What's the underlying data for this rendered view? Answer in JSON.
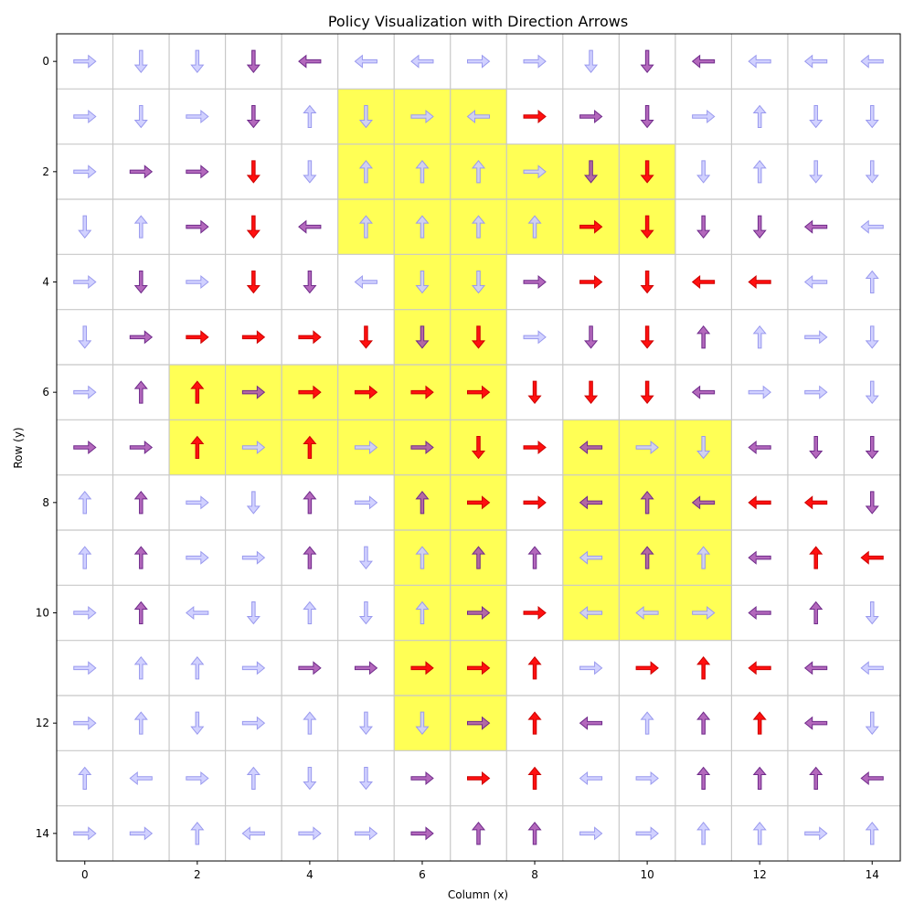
{
  "chart_data": {
    "type": "quiver",
    "title": "Policy Visualization with Direction Arrows",
    "xlabel": "Column (x)",
    "ylabel": "Row (y)",
    "xlim": [
      -0.5,
      14.5
    ],
    "ylim": [
      14.5,
      -0.5
    ],
    "y_inverted": true,
    "grid": true,
    "xticks": [
      0,
      2,
      4,
      6,
      8,
      10,
      12,
      14
    ],
    "yticks": [
      0,
      2,
      4,
      6,
      8,
      10,
      12,
      14
    ],
    "colors": {
      "highlight": "#ffff55",
      "grid": "#c8c8c8",
      "arrow_low": "#b8b8ff",
      "arrow_mid": "#a64db0",
      "arrow_high": "#ff0000"
    },
    "highlighted_cells": [
      [
        5,
        1
      ],
      [
        6,
        1
      ],
      [
        7,
        1
      ],
      [
        5,
        2
      ],
      [
        6,
        2
      ],
      [
        7,
        2
      ],
      [
        8,
        2
      ],
      [
        9,
        2
      ],
      [
        10,
        2
      ],
      [
        5,
        3
      ],
      [
        6,
        3
      ],
      [
        7,
        3
      ],
      [
        8,
        3
      ],
      [
        9,
        3
      ],
      [
        10,
        3
      ],
      [
        6,
        4
      ],
      [
        7,
        4
      ],
      [
        6,
        5
      ],
      [
        7,
        5
      ],
      [
        2,
        6
      ],
      [
        3,
        6
      ],
      [
        4,
        6
      ],
      [
        5,
        6
      ],
      [
        6,
        6
      ],
      [
        7,
        6
      ],
      [
        2,
        7
      ],
      [
        3,
        7
      ],
      [
        4,
        7
      ],
      [
        5,
        7
      ],
      [
        6,
        7
      ],
      [
        7,
        7
      ],
      [
        9,
        7
      ],
      [
        10,
        7
      ],
      [
        11,
        7
      ],
      [
        6,
        8
      ],
      [
        7,
        8
      ],
      [
        9,
        8
      ],
      [
        10,
        8
      ],
      [
        11,
        8
      ],
      [
        6,
        9
      ],
      [
        7,
        9
      ],
      [
        9,
        9
      ],
      [
        10,
        9
      ],
      [
        11,
        9
      ],
      [
        6,
        10
      ],
      [
        7,
        10
      ],
      [
        9,
        10
      ],
      [
        10,
        10
      ],
      [
        11,
        10
      ],
      [
        6,
        11
      ],
      [
        7,
        11
      ],
      [
        6,
        12
      ],
      [
        7,
        12
      ]
    ],
    "arrow_legend": {
      "R": "right",
      "L": "left",
      "U": "up",
      "D": "down",
      "0": "light / low",
      "1": "medium",
      "2": "strong / high"
    },
    "policy_rows": [
      [
        "R0",
        "D0",
        "D0",
        "D1",
        "L1",
        "L0",
        "L0",
        "R0",
        "R0",
        "D0",
        "D1",
        "L1",
        "L0",
        "L0",
        "L0"
      ],
      [
        "R0",
        "D0",
        "R0",
        "D1",
        "U0",
        "D0",
        "R0",
        "L0",
        "R2",
        "R1",
        "D1",
        "R0",
        "U0",
        "D0",
        "D0"
      ],
      [
        "R0",
        "R1",
        "R1",
        "D2",
        "D0",
        "U0",
        "U0",
        "U0",
        "R0",
        "D1",
        "D2",
        "D0",
        "U0",
        "D0",
        "D0"
      ],
      [
        "D0",
        "U0",
        "R1",
        "D2",
        "L1",
        "U0",
        "U0",
        "U0",
        "U0",
        "R2",
        "D2",
        "D1",
        "D1",
        "L1",
        "L0"
      ],
      [
        "R0",
        "D1",
        "R0",
        "D2",
        "D1",
        "L0",
        "D0",
        "D0",
        "R1",
        "R2",
        "D2",
        "L2",
        "L2",
        "L0",
        "U0"
      ],
      [
        "D0",
        "R1",
        "R2",
        "R2",
        "R2",
        "D2",
        "D1",
        "D2",
        "R0",
        "D1",
        "D2",
        "U1",
        "U0",
        "R0",
        "D0"
      ],
      [
        "R0",
        "U1",
        "U2",
        "R1",
        "R2",
        "R2",
        "R2",
        "R2",
        "D2",
        "D2",
        "D2",
        "L1",
        "R0",
        "R0",
        "D0"
      ],
      [
        "R1",
        "R1",
        "U2",
        "R0",
        "U2",
        "R0",
        "R1",
        "D2",
        "R2",
        "L1",
        "R0",
        "D0",
        "L1",
        "D1",
        "D1"
      ],
      [
        "U0",
        "U1",
        "R0",
        "D0",
        "U1",
        "R0",
        "U1",
        "R2",
        "R2",
        "L1",
        "U1",
        "L1",
        "L2",
        "L2",
        "D1"
      ],
      [
        "U0",
        "U1",
        "R0",
        "R0",
        "U1",
        "D0",
        "U0",
        "U1",
        "U1",
        "L0",
        "U1",
        "U0",
        "L1",
        "U2",
        "L2"
      ],
      [
        "R0",
        "U1",
        "L0",
        "D0",
        "U0",
        "D0",
        "U0",
        "R1",
        "R2",
        "L0",
        "L0",
        "R0",
        "L1",
        "U1",
        "D0"
      ],
      [
        "R0",
        "U0",
        "U0",
        "R0",
        "R1",
        "R1",
        "R2",
        "R2",
        "U2",
        "R0",
        "R2",
        "U2",
        "L2",
        "L1",
        "L0"
      ],
      [
        "R0",
        "U0",
        "D0",
        "R0",
        "U0",
        "D0",
        "D0",
        "R1",
        "U2",
        "L1",
        "U0",
        "U1",
        "U2",
        "L1",
        "D0"
      ],
      [
        "U0",
        "L0",
        "R0",
        "U0",
        "D0",
        "D0",
        "R1",
        "R2",
        "U2",
        "L0",
        "R0",
        "U1",
        "U1",
        "U1",
        "L1"
      ],
      [
        "R0",
        "R0",
        "U0",
        "L0",
        "R0",
        "R0",
        "R1",
        "U1",
        "U1",
        "R0",
        "R0",
        "U0",
        "U0",
        "R0",
        "U0"
      ]
    ]
  }
}
